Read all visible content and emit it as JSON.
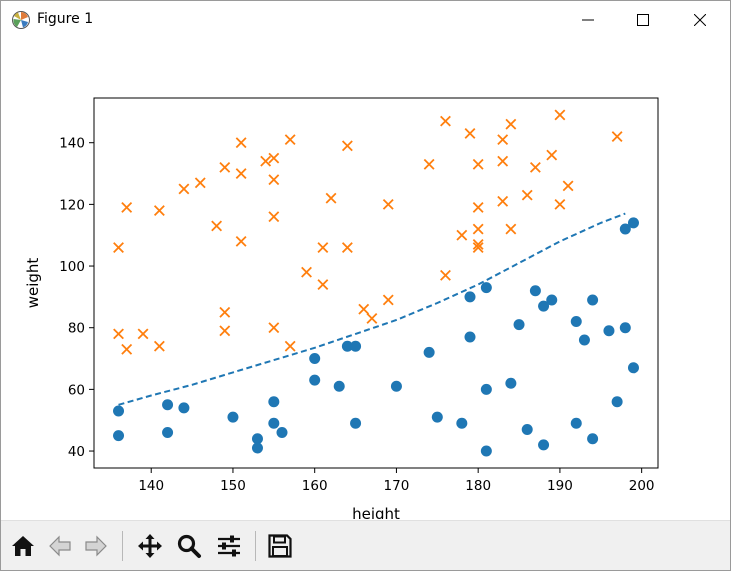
{
  "window": {
    "title": "Figure 1",
    "icons": {
      "app": "matplotlib-icon",
      "minimize": "minimize-icon",
      "maximize": "maximize-icon",
      "close": "close-icon"
    }
  },
  "toolbar": {
    "buttons": [
      {
        "name": "home-icon"
      },
      {
        "name": "back-icon"
      },
      {
        "name": "forward-icon"
      },
      {
        "name": "pan-icon"
      },
      {
        "name": "zoom-icon"
      },
      {
        "name": "configure-subplots-icon"
      },
      {
        "name": "save-icon"
      }
    ]
  },
  "chart_data": {
    "type": "scatter",
    "title": "",
    "xlabel": "height",
    "ylabel": "weight",
    "xlim": [
      133,
      202
    ],
    "ylim": [
      34.5,
      154.5
    ],
    "xticks": [
      140,
      150,
      160,
      170,
      180,
      190,
      200
    ],
    "yticks": [
      40,
      60,
      80,
      100,
      120,
      140
    ],
    "grid": false,
    "colors": {
      "circles": "#1f77b4",
      "crosses": "#ff7f0e",
      "boundary": "#1f77b4"
    },
    "series": [
      {
        "marker": "circle",
        "color": "#1f77b4",
        "points": [
          [
            136,
            53
          ],
          [
            136,
            45
          ],
          [
            142,
            55
          ],
          [
            142,
            46
          ],
          [
            144,
            54
          ],
          [
            150,
            51
          ],
          [
            153,
            44
          ],
          [
            153,
            41
          ],
          [
            155,
            56
          ],
          [
            155,
            49
          ],
          [
            156,
            46
          ],
          [
            160,
            70
          ],
          [
            160,
            63
          ],
          [
            163,
            61
          ],
          [
            164,
            74
          ],
          [
            165,
            74
          ],
          [
            165,
            49
          ],
          [
            170,
            61
          ],
          [
            174,
            72
          ],
          [
            175,
            51
          ],
          [
            178,
            49
          ],
          [
            179,
            90
          ],
          [
            179,
            77
          ],
          [
            181,
            93
          ],
          [
            181,
            60
          ],
          [
            181,
            40
          ],
          [
            184,
            62
          ],
          [
            185,
            81
          ],
          [
            186,
            47
          ],
          [
            187,
            92
          ],
          [
            188,
            87
          ],
          [
            188,
            42
          ],
          [
            189,
            89
          ],
          [
            192,
            82
          ],
          [
            192,
            49
          ],
          [
            193,
            76
          ],
          [
            194,
            89
          ],
          [
            194,
            44
          ],
          [
            196,
            79
          ],
          [
            197,
            56
          ],
          [
            198,
            112
          ],
          [
            198,
            80
          ],
          [
            199,
            114
          ],
          [
            199,
            67
          ]
        ]
      },
      {
        "marker": "x",
        "color": "#ff7f0e",
        "points": [
          [
            136,
            106
          ],
          [
            136,
            78
          ],
          [
            137,
            119
          ],
          [
            137,
            73
          ],
          [
            139,
            78
          ],
          [
            141,
            118
          ],
          [
            141,
            74
          ],
          [
            144,
            125
          ],
          [
            146,
            127
          ],
          [
            148,
            113
          ],
          [
            149,
            132
          ],
          [
            149,
            85
          ],
          [
            149,
            79
          ],
          [
            151,
            140
          ],
          [
            151,
            130
          ],
          [
            151,
            108
          ],
          [
            154,
            134
          ],
          [
            155,
            135
          ],
          [
            155,
            128
          ],
          [
            155,
            116
          ],
          [
            155,
            80
          ],
          [
            157,
            141
          ],
          [
            157,
            74
          ],
          [
            159,
            98
          ],
          [
            161,
            106
          ],
          [
            161,
            94
          ],
          [
            162,
            122
          ],
          [
            164,
            139
          ],
          [
            164,
            106
          ],
          [
            166,
            86
          ],
          [
            167,
            83
          ],
          [
            169,
            120
          ],
          [
            169,
            89
          ],
          [
            174,
            133
          ],
          [
            176,
            147
          ],
          [
            176,
            97
          ],
          [
            178,
            110
          ],
          [
            179,
            143
          ],
          [
            180,
            133
          ],
          [
            180,
            119
          ],
          [
            180,
            112
          ],
          [
            180,
            107
          ],
          [
            180,
            106
          ],
          [
            183,
            141
          ],
          [
            183,
            134
          ],
          [
            183,
            121
          ],
          [
            184,
            146
          ],
          [
            184,
            112
          ],
          [
            186,
            123
          ],
          [
            187,
            132
          ],
          [
            189,
            136
          ],
          [
            190,
            149
          ],
          [
            190,
            120
          ],
          [
            191,
            126
          ],
          [
            197,
            142
          ]
        ]
      },
      {
        "marker": "dashed-line",
        "color": "#1f77b4",
        "points": [
          [
            136,
            55
          ],
          [
            140,
            58
          ],
          [
            145,
            61.5
          ],
          [
            150,
            65.5
          ],
          [
            155,
            69.5
          ],
          [
            160,
            73.5
          ],
          [
            165,
            78
          ],
          [
            170,
            82.5
          ],
          [
            175,
            88
          ],
          [
            180,
            94
          ],
          [
            185,
            101
          ],
          [
            190,
            108
          ],
          [
            195,
            114
          ],
          [
            198,
            117
          ]
        ]
      }
    ]
  }
}
